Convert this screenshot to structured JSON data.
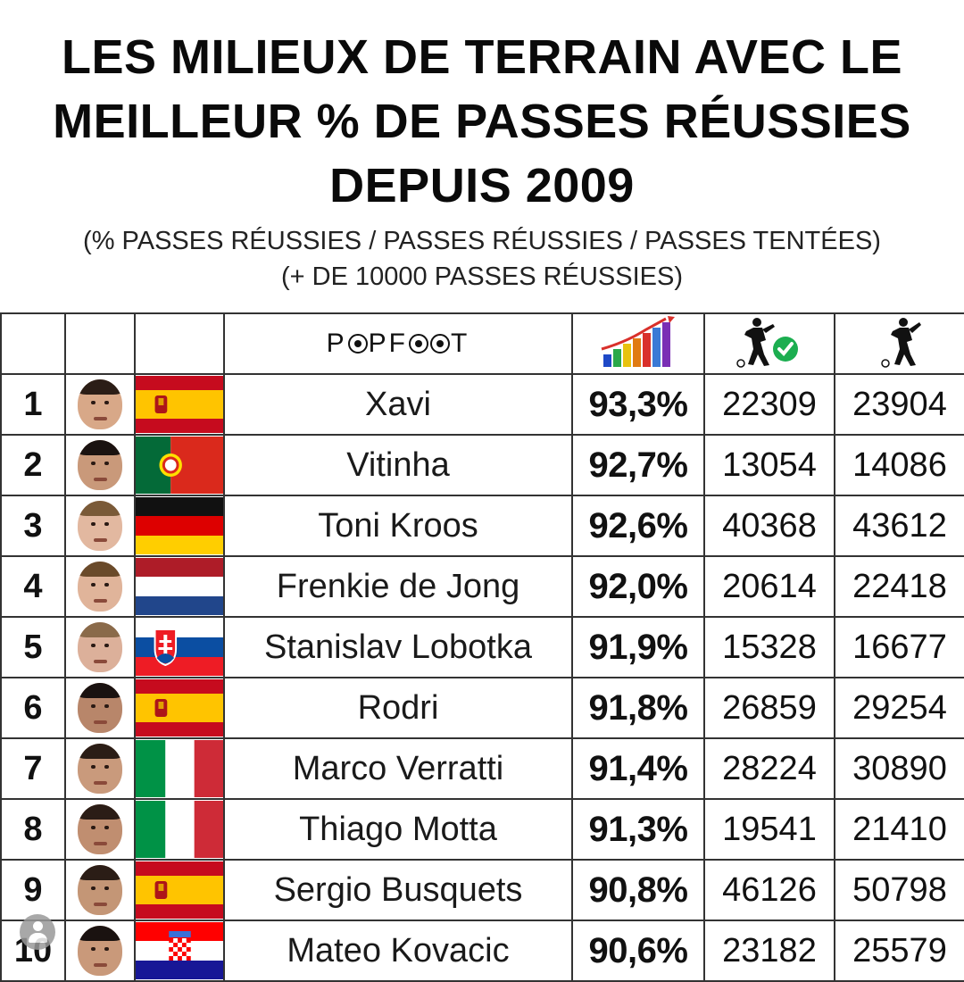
{
  "title": {
    "line1": "LES MILIEUX DE TERRAIN AVEC LE",
    "line2": "MEILLEUR % DE PASSES RÉUSSIES",
    "line3": "DEPUIS 2009"
  },
  "subtitle": {
    "line1": "(% PASSES RÉUSSIES / PASSES RÉUSSIES / PASSES TENTÉES)",
    "line2": "(+ DE 10000 PASSES RÉUSSIES)"
  },
  "header_icons": {
    "logo": "popfoot-logo",
    "col_pct": "bar-chart-arrow-icon",
    "col_success": "player-kick-checkmark-icon",
    "col_attempted": "player-kick-icon"
  },
  "players": [
    {
      "rank": "1",
      "name": "Xavi",
      "pct": "93,3%",
      "completed": "22309",
      "attempted": "23904",
      "flag": "spain"
    },
    {
      "rank": "2",
      "name": "Vitinha",
      "pct": "92,7%",
      "completed": "13054",
      "attempted": "14086",
      "flag": "portugal"
    },
    {
      "rank": "3",
      "name": "Toni Kroos",
      "pct": "92,6%",
      "completed": "40368",
      "attempted": "43612",
      "flag": "germany"
    },
    {
      "rank": "4",
      "name": "Frenkie de Jong",
      "pct": "92,0%",
      "completed": "20614",
      "attempted": "22418",
      "flag": "netherlands"
    },
    {
      "rank": "5",
      "name": "Stanislav Lobotka",
      "pct": "91,9%",
      "completed": "15328",
      "attempted": "16677",
      "flag": "slovakia"
    },
    {
      "rank": "6",
      "name": "Rodri",
      "pct": "91,8%",
      "completed": "26859",
      "attempted": "29254",
      "flag": "spain"
    },
    {
      "rank": "7",
      "name": "Marco Verratti",
      "pct": "91,4%",
      "completed": "28224",
      "attempted": "30890",
      "flag": "italy"
    },
    {
      "rank": "8",
      "name": "Thiago Motta",
      "pct": "91,3%",
      "completed": "19541",
      "attempted": "21410",
      "flag": "italy"
    },
    {
      "rank": "9",
      "name": "Sergio Busquets",
      "pct": "90,8%",
      "completed": "46126",
      "attempted": "50798",
      "flag": "spain"
    },
    {
      "rank": "10",
      "name": "Mateo Kovacic",
      "pct": "90,6%",
      "completed": "23182",
      "attempted": "25579",
      "flag": "croatia"
    }
  ]
}
